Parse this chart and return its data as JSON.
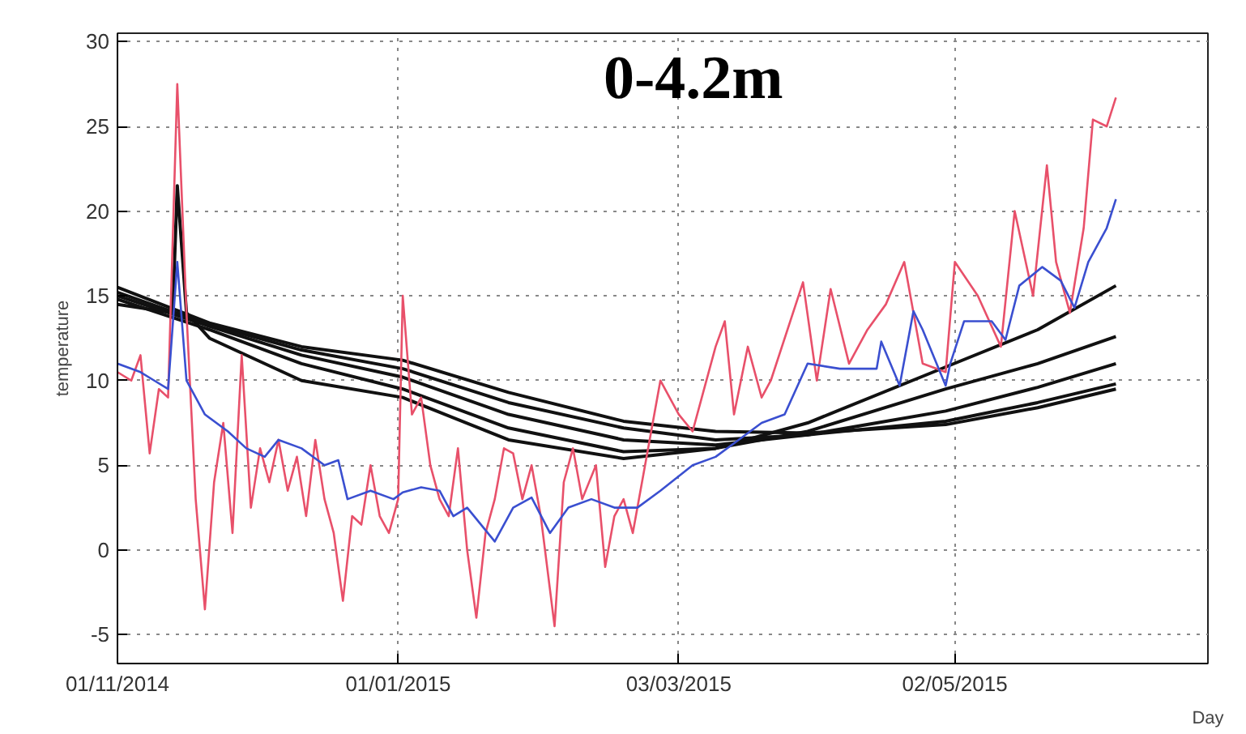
{
  "chart_data": {
    "type": "line",
    "ylabel": "temperature",
    "xlabel": "Day",
    "annotations": [
      "0-4.2m"
    ],
    "xlim": [
      "2014-11-01",
      "2015-06-26"
    ],
    "xticks": [
      {
        "value": "2014-11-01",
        "label": "01/11/2014"
      },
      {
        "value": "2015-01-01",
        "label": "01/01/2015"
      },
      {
        "value": "2015-03-03",
        "label": "03/03/2015"
      },
      {
        "value": "2015-05-02",
        "label": "02/05/2015"
      }
    ],
    "ylim": [
      -6.7,
      30.5
    ],
    "yticks": [
      -5,
      0,
      5,
      10,
      15,
      20,
      25,
      30
    ],
    "grid": true,
    "line_style": "solid",
    "series": [
      {
        "color": "#111111",
        "x": [
          "2014-11-01",
          "2014-11-13",
          "2014-11-14",
          "2014-11-16",
          "2014-11-21",
          "2014-12-11",
          "2015-01-02",
          "2015-01-25",
          "2015-02-19",
          "2015-03-11",
          "2015-03-31",
          "2015-04-30",
          "2015-05-20",
          "2015-06-06"
        ],
        "values": [
          14.5,
          14,
          21.5,
          14,
          12.5,
          10,
          9,
          6.5,
          5.4,
          6,
          7.5,
          10.8,
          13,
          15.6
        ]
      },
      {
        "color": "#111111",
        "x": [
          "2014-11-01",
          "2014-11-21",
          "2014-12-11",
          "2015-01-02",
          "2015-01-25",
          "2015-02-19",
          "2015-03-11",
          "2015-03-31",
          "2015-04-30",
          "2015-05-20",
          "2015-06-06"
        ],
        "values": [
          14.8,
          13,
          11,
          9.5,
          7.2,
          5.8,
          6,
          7,
          9.5,
          11,
          12.6
        ]
      },
      {
        "color": "#111111",
        "x": [
          "2014-11-01",
          "2014-11-21",
          "2014-12-11",
          "2015-01-02",
          "2015-01-25",
          "2015-02-19",
          "2015-03-11",
          "2015-03-31",
          "2015-04-30",
          "2015-05-20",
          "2015-06-06"
        ],
        "values": [
          15,
          13.2,
          11.5,
          10.2,
          8,
          6.5,
          6.2,
          6.8,
          8.2,
          9.6,
          11
        ]
      },
      {
        "color": "#111111",
        "x": [
          "2014-11-01",
          "2014-11-21",
          "2014-12-11",
          "2015-01-02",
          "2015-01-25",
          "2015-02-19",
          "2015-03-11",
          "2015-03-31",
          "2015-04-30",
          "2015-05-20",
          "2015-06-06"
        ],
        "values": [
          15.2,
          13.3,
          11.8,
          10.7,
          8.7,
          7.2,
          6.5,
          6.8,
          7.6,
          8.7,
          9.8
        ]
      },
      {
        "color": "#111111",
        "x": [
          "2014-11-01",
          "2014-11-21",
          "2014-12-11",
          "2015-01-02",
          "2015-01-25",
          "2015-02-19",
          "2015-03-11",
          "2015-03-31",
          "2015-04-30",
          "2015-05-20",
          "2015-06-06"
        ],
        "values": [
          15.5,
          13.4,
          12,
          11.2,
          9.3,
          7.6,
          7,
          6.9,
          7.4,
          8.4,
          9.5
        ]
      },
      {
        "color": "#e8506a",
        "x": [
          "2014-11-01",
          "2014-11-04",
          "2014-11-06",
          "2014-11-08",
          "2014-11-10",
          "2014-11-12",
          "2014-11-14",
          "2014-11-16",
          "2014-11-18",
          "2014-11-20",
          "2014-11-22",
          "2014-11-24",
          "2014-11-26",
          "2014-11-28",
          "2014-11-30",
          "2014-12-02",
          "2014-12-04",
          "2014-12-06",
          "2014-12-08",
          "2014-12-10",
          "2014-12-12",
          "2014-12-14",
          "2014-12-16",
          "2014-12-18",
          "2014-12-20",
          "2014-12-22",
          "2014-12-24",
          "2014-12-26",
          "2014-12-28",
          "2014-12-30",
          "2015-01-01",
          "2015-01-02",
          "2015-01-04",
          "2015-01-06",
          "2015-01-08",
          "2015-01-10",
          "2015-01-12",
          "2015-01-14",
          "2015-01-16",
          "2015-01-18",
          "2015-01-20",
          "2015-01-22",
          "2015-01-24",
          "2015-01-26",
          "2015-01-28",
          "2015-01-30",
          "2015-02-01",
          "2015-02-04",
          "2015-02-06",
          "2015-02-08",
          "2015-02-10",
          "2015-02-13",
          "2015-02-15",
          "2015-02-17",
          "2015-02-19",
          "2015-02-21",
          "2015-02-23",
          "2015-02-27",
          "2015-03-01",
          "2015-03-03",
          "2015-03-06",
          "2015-03-08",
          "2015-03-11",
          "2015-03-13",
          "2015-03-15",
          "2015-03-18",
          "2015-03-21",
          "2015-03-23",
          "2015-03-30",
          "2015-04-02",
          "2015-04-05",
          "2015-04-09",
          "2015-04-13",
          "2015-04-17",
          "2015-04-21",
          "2015-04-25",
          "2015-04-30",
          "2015-05-02",
          "2015-05-07",
          "2015-05-12",
          "2015-05-15",
          "2015-05-19",
          "2015-05-22",
          "2015-05-24",
          "2015-05-27",
          "2015-05-30",
          "2015-06-01",
          "2015-06-04",
          "2015-06-06"
        ],
        "values": [
          10.5,
          10,
          11.5,
          5.7,
          9.5,
          9,
          27.5,
          14,
          3,
          -3.5,
          4,
          7.5,
          1,
          11.5,
          2.5,
          6,
          4,
          6.5,
          3.5,
          5.5,
          2,
          6.5,
          3,
          1,
          -3,
          2,
          1.5,
          5,
          2,
          1,
          3,
          15,
          8,
          9,
          5,
          3,
          2,
          6,
          0,
          -4,
          1,
          3,
          6,
          5.7,
          3,
          5,
          2,
          -4.5,
          4,
          6,
          3,
          5,
          -1,
          2,
          3,
          1,
          4,
          10,
          9,
          8,
          7,
          9,
          12,
          13.5,
          8,
          12,
          9,
          10,
          15.8,
          10,
          15.4,
          11,
          13,
          14.5,
          17,
          11,
          10.5,
          17,
          15,
          12,
          20,
          15,
          22.7,
          17,
          14,
          19,
          25.4,
          25,
          26.7
        ]
      },
      {
        "color": "#3a4fd0",
        "x": [
          "2014-11-01",
          "2014-11-06",
          "2014-11-09",
          "2014-11-12",
          "2014-11-14",
          "2014-11-16",
          "2014-11-20",
          "2014-11-25",
          "2014-11-29",
          "2014-12-03",
          "2014-12-06",
          "2014-12-11",
          "2014-12-16",
          "2014-12-19",
          "2014-12-21",
          "2014-12-26",
          "2014-12-31",
          "2015-01-02",
          "2015-01-06",
          "2015-01-10",
          "2015-01-13",
          "2015-01-16",
          "2015-01-22",
          "2015-01-26",
          "2015-01-30",
          "2015-02-03",
          "2015-02-07",
          "2015-02-12",
          "2015-02-17",
          "2015-02-22",
          "2015-02-27",
          "2015-03-06",
          "2015-03-11",
          "2015-03-16",
          "2015-03-21",
          "2015-03-26",
          "2015-03-31",
          "2015-04-07",
          "2015-04-15",
          "2015-04-16",
          "2015-04-20",
          "2015-04-23",
          "2015-04-25",
          "2015-04-30",
          "2015-05-01",
          "2015-05-04",
          "2015-05-10",
          "2015-05-13",
          "2015-05-16",
          "2015-05-21",
          "2015-05-25",
          "2015-05-28",
          "2015-05-31",
          "2015-06-04",
          "2015-06-06"
        ],
        "values": [
          11,
          10.5,
          10,
          9.5,
          17,
          10,
          8,
          7,
          6,
          5.5,
          6.5,
          6,
          5,
          5.3,
          3,
          3.5,
          3,
          3.4,
          3.7,
          3.5,
          2,
          2.5,
          0.5,
          2.5,
          3.1,
          1,
          2.5,
          3,
          2.5,
          2.5,
          3.5,
          5,
          5.5,
          6.5,
          7.5,
          8,
          11,
          10.7,
          10.7,
          12.3,
          9.7,
          14.1,
          13,
          9.7,
          11,
          13.5,
          13.5,
          12.4,
          15.6,
          16.7,
          15.9,
          14.3,
          17,
          19,
          20.7
        ]
      }
    ]
  }
}
